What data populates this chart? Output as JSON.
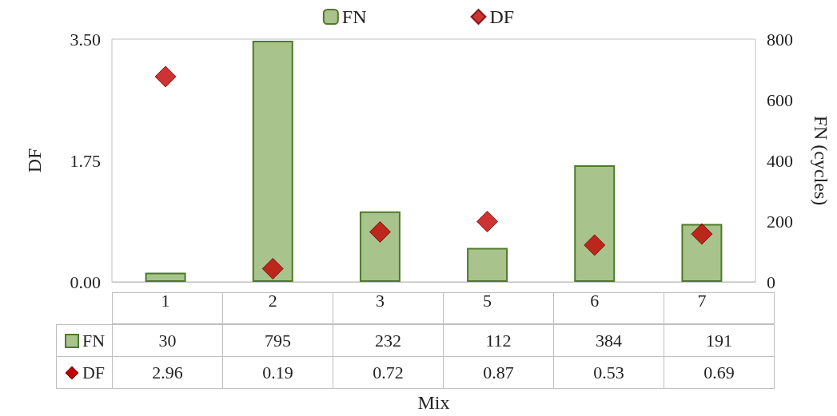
{
  "chart_data": {
    "type": "bar",
    "xlabel": "Mix",
    "ylabel": "DF",
    "y2label": "FN (cycles)",
    "categories": [
      "1",
      "2",
      "3",
      "5",
      "6",
      "7"
    ],
    "series": [
      {
        "name": "FN",
        "axis": "y2",
        "color": "#a9c38d",
        "values": [
          30,
          795,
          232,
          112,
          384,
          191
        ]
      },
      {
        "name": "DF",
        "type": "scatter",
        "axis": "y",
        "color": "#c00000",
        "marker": "diamond",
        "values": [
          2.96,
          0.19,
          0.72,
          0.87,
          0.53,
          0.69
        ]
      }
    ],
    "ylim": [
      0,
      3.5
    ],
    "yticks": [
      {
        "value": 0,
        "label": "0.00"
      },
      {
        "value": 1.75,
        "label": "1.75"
      },
      {
        "value": 3.5,
        "label": "3.50"
      }
    ],
    "y2lim": [
      0,
      800
    ],
    "y2ticks": [
      0,
      200,
      400,
      600,
      800
    ],
    "legend": "top",
    "grid": false,
    "data_labels": true
  }
}
